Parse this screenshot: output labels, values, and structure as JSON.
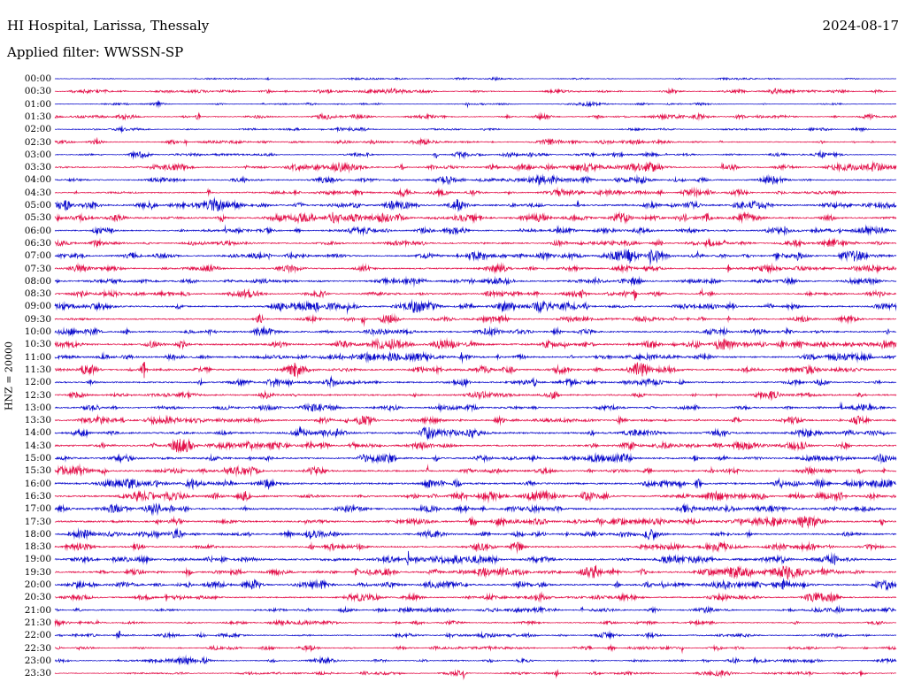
{
  "header": {
    "title": "HI Hospital, Larissa, Thessaly",
    "date": "2024-08-17",
    "filter": "Applied filter: WWSSN-SP"
  },
  "axis": {
    "left_label": "HNZ = 20000"
  },
  "chart_data": {
    "type": "line",
    "subtype": "helicorder-seismogram",
    "title": "HI Hospital, Larissa, Thessaly",
    "date": "2024-08-17",
    "filter": "WWSSN-SP",
    "channel_scale_label": "HNZ = 20000",
    "minutes_per_line": 30,
    "legend_position": "none",
    "grid": false,
    "trace_colors": {
      "blue": "#0c0ccc",
      "red": "#e3114a"
    },
    "rows": [
      {
        "time": "00:00",
        "color": "blue",
        "amplitude": 0.35,
        "seed": 1
      },
      {
        "time": "00:30",
        "color": "red",
        "amplitude": 0.6,
        "seed": 2
      },
      {
        "time": "01:00",
        "color": "blue",
        "amplitude": 0.4,
        "seed": 3
      },
      {
        "time": "01:30",
        "color": "red",
        "amplitude": 0.7,
        "seed": 4
      },
      {
        "time": "02:00",
        "color": "blue",
        "amplitude": 0.5,
        "seed": 5
      },
      {
        "time": "02:30",
        "color": "red",
        "amplitude": 0.7,
        "seed": 6
      },
      {
        "time": "03:00",
        "color": "blue",
        "amplitude": 0.6,
        "seed": 7
      },
      {
        "time": "03:30",
        "color": "red",
        "amplitude": 1.0,
        "seed": 8
      },
      {
        "time": "04:00",
        "color": "blue",
        "amplitude": 1.0,
        "seed": 9
      },
      {
        "time": "04:30",
        "color": "red",
        "amplitude": 0.9,
        "seed": 10
      },
      {
        "time": "05:00",
        "color": "blue",
        "amplitude": 1.3,
        "seed": 11
      },
      {
        "time": "05:30",
        "color": "red",
        "amplitude": 1.3,
        "seed": 12
      },
      {
        "time": "06:00",
        "color": "blue",
        "amplitude": 1.0,
        "seed": 13
      },
      {
        "time": "06:30",
        "color": "red",
        "amplitude": 1.0,
        "seed": 14
      },
      {
        "time": "07:00",
        "color": "blue",
        "amplitude": 1.1,
        "seed": 15
      },
      {
        "time": "07:30",
        "color": "red",
        "amplitude": 1.1,
        "seed": 16
      },
      {
        "time": "08:00",
        "color": "blue",
        "amplitude": 1.1,
        "seed": 17
      },
      {
        "time": "08:30",
        "color": "red",
        "amplitude": 1.0,
        "seed": 18
      },
      {
        "time": "09:00",
        "color": "blue",
        "amplitude": 1.2,
        "seed": 19
      },
      {
        "time": "09:30",
        "color": "red",
        "amplitude": 1.0,
        "seed": 20
      },
      {
        "time": "10:00",
        "color": "blue",
        "amplitude": 1.2,
        "seed": 21
      },
      {
        "time": "10:30",
        "color": "red",
        "amplitude": 1.4,
        "seed": 22
      },
      {
        "time": "11:00",
        "color": "blue",
        "amplitude": 1.2,
        "seed": 23
      },
      {
        "time": "11:30",
        "color": "red",
        "amplitude": 1.3,
        "seed": 24
      },
      {
        "time": "12:00",
        "color": "blue",
        "amplitude": 1.2,
        "seed": 25
      },
      {
        "time": "12:30",
        "color": "red",
        "amplitude": 1.2,
        "seed": 26
      },
      {
        "time": "13:00",
        "color": "blue",
        "amplitude": 1.1,
        "seed": 27
      },
      {
        "time": "13:30",
        "color": "red",
        "amplitude": 1.2,
        "seed": 28
      },
      {
        "time": "14:00",
        "color": "blue",
        "amplitude": 1.4,
        "seed": 29
      },
      {
        "time": "14:30",
        "color": "red",
        "amplitude": 1.3,
        "seed": 30
      },
      {
        "time": "15:00",
        "color": "blue",
        "amplitude": 1.3,
        "seed": 31
      },
      {
        "time": "15:30",
        "color": "red",
        "amplitude": 1.3,
        "seed": 32
      },
      {
        "time": "16:00",
        "color": "blue",
        "amplitude": 1.5,
        "seed": 33
      },
      {
        "time": "16:30",
        "color": "red",
        "amplitude": 1.3,
        "seed": 34
      },
      {
        "time": "17:00",
        "color": "blue",
        "amplitude": 1.4,
        "seed": 35
      },
      {
        "time": "17:30",
        "color": "red",
        "amplitude": 1.4,
        "seed": 36
      },
      {
        "time": "18:00",
        "color": "blue",
        "amplitude": 1.3,
        "seed": 37
      },
      {
        "time": "18:30",
        "color": "red",
        "amplitude": 1.2,
        "seed": 38
      },
      {
        "time": "19:00",
        "color": "blue",
        "amplitude": 1.4,
        "seed": 39
      },
      {
        "time": "19:30",
        "color": "red",
        "amplitude": 1.3,
        "seed": 40
      },
      {
        "time": "20:00",
        "color": "blue",
        "amplitude": 1.2,
        "seed": 41
      },
      {
        "time": "20:30",
        "color": "red",
        "amplitude": 1.0,
        "seed": 42
      },
      {
        "time": "21:00",
        "color": "blue",
        "amplitude": 0.8,
        "seed": 43
      },
      {
        "time": "21:30",
        "color": "red",
        "amplitude": 0.7,
        "seed": 44
      },
      {
        "time": "22:00",
        "color": "blue",
        "amplitude": 0.8,
        "seed": 45
      },
      {
        "time": "22:30",
        "color": "red",
        "amplitude": 0.6,
        "seed": 46
      },
      {
        "time": "23:00",
        "color": "blue",
        "amplitude": 0.7,
        "seed": 47
      },
      {
        "time": "23:30",
        "color": "red",
        "amplitude": 0.6,
        "seed": 48
      }
    ]
  }
}
